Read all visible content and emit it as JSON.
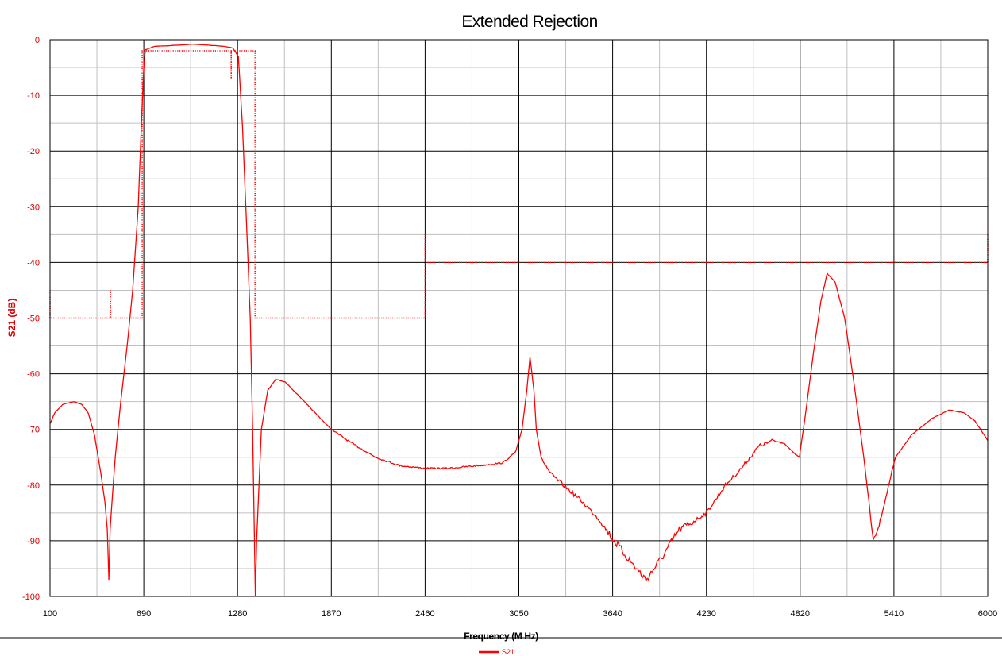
{
  "chart_data": {
    "type": "line",
    "title": "Extended Rejection",
    "xlabel": "Frequency (M Hz)",
    "ylabel": "S21 (dB)",
    "xlim": [
      100,
      6000
    ],
    "ylim": [
      -100,
      0
    ],
    "x_ticks": [
      100,
      690,
      1280,
      1870,
      2460,
      3050,
      3640,
      4230,
      4820,
      5410,
      6000
    ],
    "x_tick_labels": [
      "100",
      "690",
      "1280",
      "1870",
      "2460",
      "3050",
      "3640",
      "4230",
      "4820",
      "5410",
      "6000"
    ],
    "y_ticks": [
      0,
      -10,
      -20,
      -30,
      -40,
      -50,
      -60,
      -70,
      -80,
      -90,
      -100
    ],
    "y_tick_labels": [
      "0",
      "-10",
      "-20",
      "-30",
      "-40",
      "-50",
      "-60",
      "-70",
      "-80",
      "-90",
      "-100"
    ],
    "grid": true,
    "legend": {
      "position": "bottom-center",
      "entries": [
        "S21"
      ]
    },
    "series": [
      {
        "name": "S21",
        "color": "#ff0000",
        "points": [
          [
            100,
            -69
          ],
          [
            130,
            -67
          ],
          [
            180,
            -65.5
          ],
          [
            250,
            -65
          ],
          [
            300,
            -65.5
          ],
          [
            340,
            -67
          ],
          [
            380,
            -71
          ],
          [
            420,
            -78
          ],
          [
            445,
            -83
          ],
          [
            460,
            -88
          ],
          [
            470,
            -97
          ],
          [
            478,
            -88
          ],
          [
            485,
            -85
          ],
          [
            510,
            -75
          ],
          [
            545,
            -65
          ],
          [
            585,
            -55
          ],
          [
            620,
            -45
          ],
          [
            655,
            -30
          ],
          [
            675,
            -15
          ],
          [
            690,
            -5
          ],
          [
            700,
            -1.8
          ],
          [
            760,
            -1.2
          ],
          [
            900,
            -1
          ],
          [
            1000,
            -0.8
          ],
          [
            1100,
            -1
          ],
          [
            1200,
            -1.2
          ],
          [
            1250,
            -1.5
          ],
          [
            1285,
            -3
          ],
          [
            1310,
            -15
          ],
          [
            1335,
            -32
          ],
          [
            1360,
            -50
          ],
          [
            1375,
            -70
          ],
          [
            1392,
            -100
          ],
          [
            1400,
            -90
          ],
          [
            1430,
            -70
          ],
          [
            1470,
            -63
          ],
          [
            1520,
            -61
          ],
          [
            1580,
            -61.5
          ],
          [
            1650,
            -63.5
          ],
          [
            1750,
            -66.5
          ],
          [
            1870,
            -70
          ],
          [
            2000,
            -72.5
          ],
          [
            2150,
            -75
          ],
          [
            2300,
            -76.5
          ],
          [
            2460,
            -77
          ],
          [
            2600,
            -77
          ],
          [
            2800,
            -76.5
          ],
          [
            2950,
            -76
          ],
          [
            3030,
            -74
          ],
          [
            3070,
            -70
          ],
          [
            3100,
            -63
          ],
          [
            3120,
            -57
          ],
          [
            3145,
            -63
          ],
          [
            3160,
            -70
          ],
          [
            3190,
            -75
          ],
          [
            3250,
            -78
          ],
          [
            3350,
            -80.5
          ],
          [
            3450,
            -83
          ],
          [
            3550,
            -86
          ],
          [
            3650,
            -90
          ],
          [
            3760,
            -94
          ],
          [
            3850,
            -97
          ],
          [
            3950,
            -93
          ],
          [
            4060,
            -88
          ],
          [
            4150,
            -86.5
          ],
          [
            4230,
            -85
          ],
          [
            4350,
            -80
          ],
          [
            4450,
            -77
          ],
          [
            4560,
            -73
          ],
          [
            4650,
            -72
          ],
          [
            4720,
            -72.5
          ],
          [
            4790,
            -74.5
          ],
          [
            4815,
            -75
          ],
          [
            4850,
            -68
          ],
          [
            4900,
            -57
          ],
          [
            4950,
            -47
          ],
          [
            4990,
            -42
          ],
          [
            5040,
            -43.5
          ],
          [
            5100,
            -50
          ],
          [
            5160,
            -62
          ],
          [
            5220,
            -75
          ],
          [
            5260,
            -85
          ],
          [
            5280,
            -90
          ],
          [
            5310,
            -88
          ],
          [
            5360,
            -82
          ],
          [
            5420,
            -75
          ],
          [
            5520,
            -71
          ],
          [
            5650,
            -68
          ],
          [
            5760,
            -66.5
          ],
          [
            5850,
            -67
          ],
          [
            5920,
            -68.5
          ],
          [
            6000,
            -72
          ]
        ]
      },
      {
        "name": "",
        "style": "dotted",
        "color": "#ff0000",
        "points": [
          [
            100,
            -45
          ],
          [
            100,
            -50
          ],
          [
            480,
            -50
          ],
          [
            480,
            -45
          ],
          [
            480,
            -50
          ],
          [
            680,
            -50
          ],
          [
            680,
            -7
          ],
          [
            680,
            -2
          ],
          [
            1240,
            -2
          ],
          [
            1240,
            -7
          ],
          [
            1240,
            -2
          ],
          [
            1390,
            -2
          ],
          [
            1390,
            -45
          ],
          [
            1390,
            -50
          ],
          [
            2460,
            -50
          ],
          [
            2460,
            -35
          ],
          [
            2460,
            -40
          ],
          [
            6000,
            -40
          ],
          [
            6000,
            -35
          ]
        ]
      }
    ]
  }
}
